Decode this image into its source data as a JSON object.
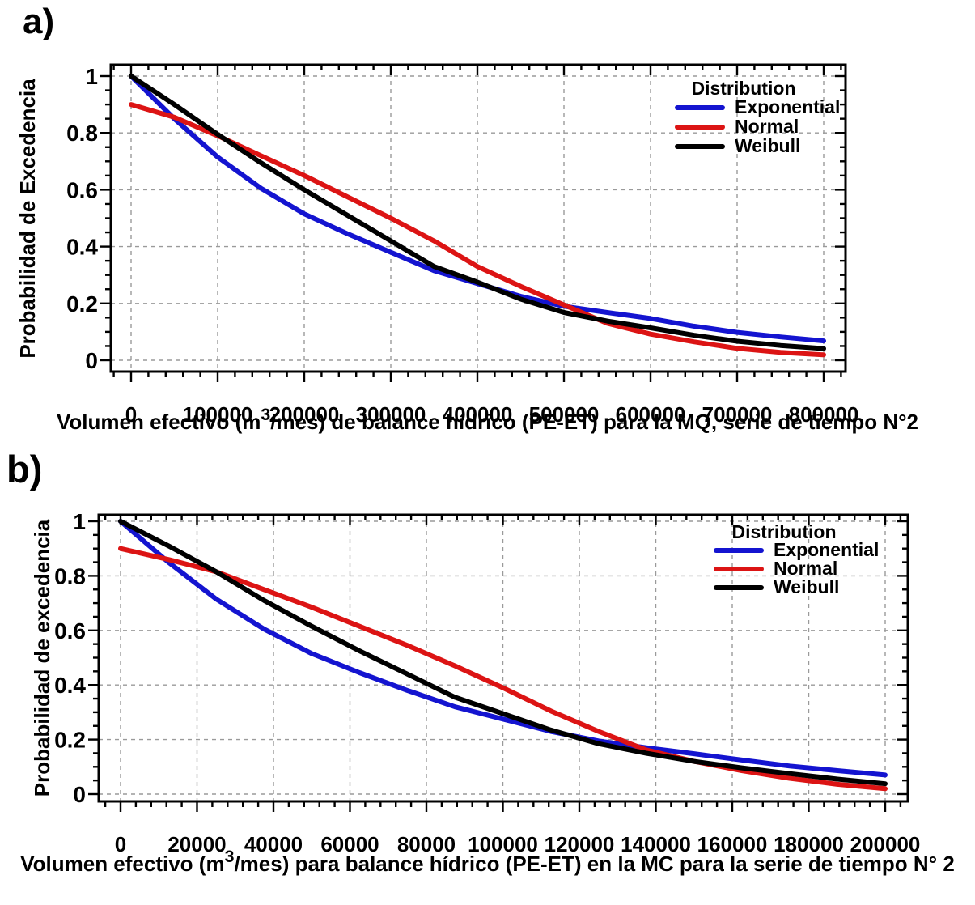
{
  "figure": {
    "panels": [
      {
        "label": "a)",
        "y_axis_label": "Probabilidad de Excedencia",
        "x_title": {
          "pre": "Volumen efectivo (m",
          "sup": "3",
          "post": "/mes) de balance hídrico (PE-ET) para la MQ, serie de tiempo N°2"
        }
      },
      {
        "label": "b)",
        "y_axis_label": "Probabilidad de excedencia",
        "x_title": {
          "pre": "Volumen efectivo (m",
          "sup": "3",
          "post": "/mes) para balance hídrico (PE-ET) en la MC para la serie de tiempo N° 2"
        }
      }
    ]
  },
  "colors": {
    "exponential": "#1414d0",
    "normal": "#dc1414",
    "weibull": "#000000",
    "grid": "#9a9a9a",
    "axis": "#000000",
    "background": "#ffffff"
  },
  "chart_data": [
    {
      "type": "line",
      "title": "",
      "xlabel": "Volumen efectivo (m3/mes) de balance hídrico (PE-ET) para la MQ, serie de tiempo N°2",
      "ylabel": "Probabilidad de Excedencia",
      "xlim": [
        0,
        800000
      ],
      "ylim": [
        0,
        1
      ],
      "xticks": [
        0,
        100000,
        200000,
        300000,
        400000,
        500000,
        600000,
        700000,
        800000
      ],
      "yticks": [
        0,
        0.2,
        0.4,
        0.6,
        0.8,
        1
      ],
      "x_minor_step": 20000,
      "y_minor_step": 0.05,
      "grid": "dashed",
      "legend_position": "upper-right-inside",
      "legend_title": "Distribution",
      "x": [
        0,
        50000,
        100000,
        150000,
        200000,
        250000,
        300000,
        350000,
        400000,
        450000,
        500000,
        550000,
        600000,
        650000,
        700000,
        750000,
        800000
      ],
      "series": [
        {
          "name": "Exponential",
          "color": "#1414d0",
          "values": [
            1.0,
            0.85,
            0.715,
            0.605,
            0.515,
            0.445,
            0.38,
            0.315,
            0.27,
            0.225,
            0.19,
            0.168,
            0.147,
            0.12,
            0.098,
            0.082,
            0.068
          ]
        },
        {
          "name": "Normal",
          "color": "#dc1414",
          "values": [
            0.9,
            0.855,
            0.79,
            0.72,
            0.65,
            0.575,
            0.5,
            0.42,
            0.33,
            0.26,
            0.195,
            0.13,
            0.092,
            0.065,
            0.042,
            0.028,
            0.019
          ]
        },
        {
          "name": "Weibull",
          "color": "#000000",
          "values": [
            1.0,
            0.9,
            0.795,
            0.695,
            0.6,
            0.51,
            0.42,
            0.33,
            0.275,
            0.215,
            0.168,
            0.138,
            0.114,
            0.088,
            0.067,
            0.052,
            0.041
          ]
        }
      ]
    },
    {
      "type": "line",
      "title": "",
      "xlabel": "Volumen efectivo (m3/mes) para balance hídrico (PE-ET) en la MC para la serie de tiempo N° 2",
      "ylabel": "Probabilidad de excedencia",
      "xlim": [
        0,
        200000
      ],
      "ylim": [
        0,
        1
      ],
      "xticks": [
        0,
        20000,
        40000,
        60000,
        80000,
        100000,
        120000,
        140000,
        160000,
        180000,
        200000
      ],
      "yticks": [
        0,
        0.2,
        0.4,
        0.6,
        0.8,
        1
      ],
      "x_minor_step": 4000,
      "y_minor_step": 0.05,
      "grid": "dashed",
      "legend_position": "upper-right-inside",
      "legend_title": "Distribution",
      "x": [
        0,
        12500,
        25000,
        37500,
        50000,
        62500,
        75000,
        87500,
        100000,
        112500,
        125000,
        137500,
        150000,
        162500,
        175000,
        187500,
        200000
      ],
      "series": [
        {
          "name": "Exponential",
          "color": "#1414d0",
          "values": [
            1.0,
            0.85,
            0.715,
            0.605,
            0.515,
            0.445,
            0.38,
            0.32,
            0.275,
            0.23,
            0.195,
            0.17,
            0.148,
            0.125,
            0.103,
            0.086,
            0.07
          ]
        },
        {
          "name": "Normal",
          "color": "#dc1414",
          "values": [
            0.9,
            0.86,
            0.815,
            0.75,
            0.685,
            0.615,
            0.545,
            0.47,
            0.39,
            0.305,
            0.23,
            0.162,
            0.12,
            0.086,
            0.058,
            0.036,
            0.02
          ]
        },
        {
          "name": "Weibull",
          "color": "#000000",
          "values": [
            1.0,
            0.91,
            0.815,
            0.71,
            0.615,
            0.525,
            0.44,
            0.355,
            0.295,
            0.235,
            0.185,
            0.15,
            0.12,
            0.096,
            0.075,
            0.055,
            0.038
          ]
        }
      ]
    }
  ]
}
